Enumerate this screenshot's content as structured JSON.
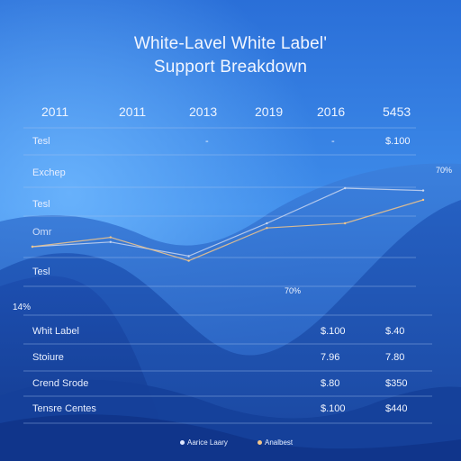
{
  "title": {
    "line1": "White-Lavel White Label'",
    "line2": "Support Breakdown"
  },
  "years": [
    "2011",
    "2011",
    "2013",
    "2019",
    "2016",
    "5453"
  ],
  "top_rows": [
    {
      "label": "Tesl",
      "values": [
        "-",
        "-",
        "$.100"
      ]
    },
    {
      "label": "Exchep"
    },
    {
      "label": "Tesl"
    },
    {
      "label": "Omr"
    },
    {
      "label": "Tesl"
    }
  ],
  "annotations": {
    "left_pct": "14%",
    "right_pct": "70%",
    "mid_pct": "70%"
  },
  "table": {
    "rows": [
      {
        "label": "Whit Label",
        "col1": "$.100",
        "col2": "$.40"
      },
      {
        "label": "Stoiure",
        "col1": "7.96",
        "col2": "7.80"
      },
      {
        "label": "Crend Srode",
        "col1": "$.80",
        "col2": "$350"
      },
      {
        "label": "Tensre Centes",
        "col1": "$.100",
        "col2": "$440"
      }
    ]
  },
  "legend": [
    {
      "name": "Aarice Laary",
      "color": "#dfe8ff"
    },
    {
      "name": "Analbest",
      "color": "#f2c58a"
    }
  ],
  "chart_data": {
    "type": "line",
    "title": "White-Lavel White Label' Support Breakdown",
    "categories": [
      "2011",
      "2011",
      "2013",
      "2019",
      "2016",
      "5453"
    ],
    "series": [
      {
        "name": "Aarice Laary",
        "color": "#c9d6f0",
        "values": [
          10,
          12,
          6,
          20,
          35,
          34
        ]
      },
      {
        "name": "Analbest",
        "color": "#f2c58a",
        "values": [
          10,
          14,
          4,
          18,
          20,
          30
        ]
      }
    ],
    "ylim": [
      0,
      40
    ],
    "grid": true,
    "legend": "bottom-center"
  },
  "colors": {
    "sky_top": "#2f7fe0",
    "sky_bottom": "#1e4fae",
    "hill_dark": "#143c98",
    "hill_mid": "#2a64c4",
    "grid": "#8fb3ea"
  }
}
